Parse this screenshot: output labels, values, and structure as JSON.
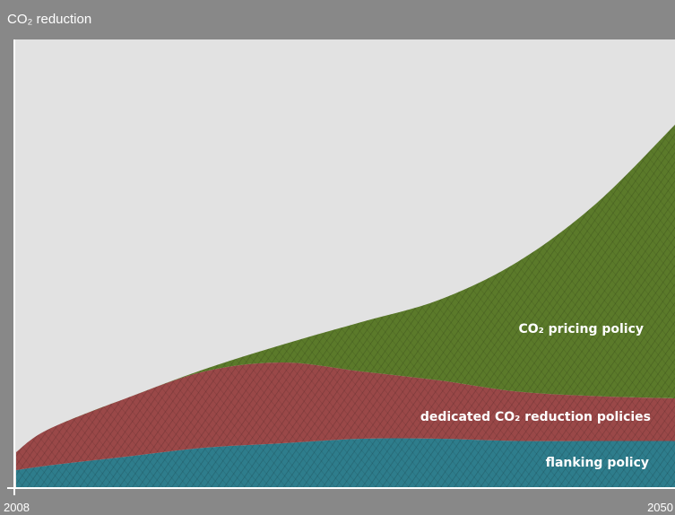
{
  "chart_data": {
    "type": "area",
    "stacked": true,
    "ylabel": "CO₂ reduction",
    "xlim": [
      2008,
      2050
    ],
    "x_ticks": [
      "2008",
      "2050"
    ],
    "ylim": [
      0,
      100
    ],
    "grid": false,
    "legend": "inline",
    "x": [
      2008,
      2010,
      2015,
      2020,
      2025,
      2030,
      2035,
      2040,
      2045,
      2050
    ],
    "series": [
      {
        "name": "flanking policy",
        "color": "#2e7d8c",
        "values": [
          4,
          5,
          7,
          9,
          10,
          11,
          11,
          10.5,
          10.5,
          10.5
        ]
      },
      {
        "name": "dedicated CO₂ reduction policies",
        "color": "#9a4848",
        "values": [
          4,
          8,
          13,
          17,
          18,
          15,
          13,
          11,
          10,
          9.5
        ]
      },
      {
        "name": "CO₂ pricing policy",
        "color": "#5b7a2a",
        "values": [
          0,
          0,
          0,
          0.5,
          4,
          11,
          18,
          29,
          43,
          61
        ]
      }
    ]
  }
}
